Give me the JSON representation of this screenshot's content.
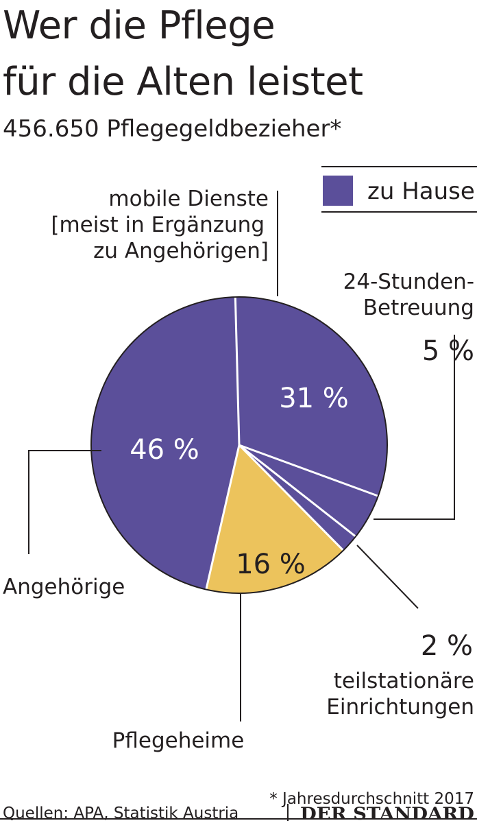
{
  "header": {
    "title_line1": "Wer die Pflege",
    "title_line2": "für die Alten leistet",
    "subtitle": "456.650 Pflegegeldbezieher*"
  },
  "legend": {
    "label": "zu Hause",
    "color": "#5b4f9a"
  },
  "colors": {
    "home": "#5b4f9a",
    "heim": "#ecc35c",
    "text": "#231f20",
    "white": "#ffffff"
  },
  "chart_data": {
    "type": "pie",
    "slices": [
      {
        "label": "mobile Dienste [meist in Ergänzung zu Angehörigen]",
        "value": 31,
        "value_label": "31 %",
        "group": "zu Hause"
      },
      {
        "label": "24-Stunden-Betreuung",
        "value": 5,
        "value_label": "5 %",
        "group": "zu Hause"
      },
      {
        "label": "teilstationäre Einrichtungen",
        "value": 2,
        "value_label": "2 %",
        "group": "zu Hause"
      },
      {
        "label": "Pflegeheime",
        "value": 16,
        "value_label": "16 %",
        "group": ""
      },
      {
        "label": "Angehörige",
        "value": 46,
        "value_label": "46 %",
        "group": "zu Hause"
      }
    ],
    "annotations": {
      "mobile_lines": [
        "mobile Dienste",
        "[meist in Ergänzung",
        "zu Angehörigen]"
      ],
      "stunden_lines": [
        "24-Stunden-",
        "Betreuung"
      ],
      "teil_lines": [
        "teilstationäre",
        "Einrichtungen"
      ],
      "pflegeheime": "Pflegeheime",
      "angehoerige": "Angehörige"
    },
    "legend_position": "top-right"
  },
  "footer": {
    "footnote": "* Jahresdurchschnitt 2017",
    "sources": "Quellen: APA, Statistik Austria",
    "brand": "DER STANDARD"
  }
}
